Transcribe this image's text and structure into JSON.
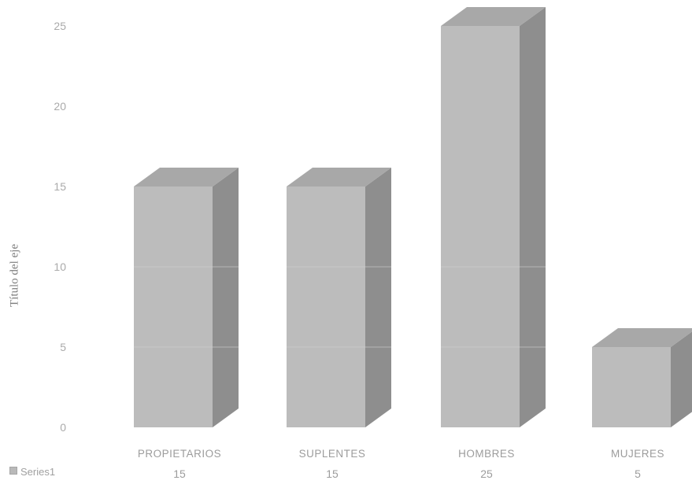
{
  "chart_data": {
    "type": "bar",
    "title": "",
    "xlabel": "",
    "ylabel": "Título del eje",
    "categories": [
      "PROPIETARIOS",
      "SUPLENTES",
      "HOMBRES",
      "MUJERES"
    ],
    "series": [
      {
        "name": "Series1",
        "values": [
          15,
          15,
          25,
          5
        ]
      }
    ],
    "ylim": [
      0,
      25
    ],
    "yticks": [
      "0",
      "5",
      "10",
      "15",
      "20",
      "25"
    ],
    "style": "3d-column",
    "grid": false,
    "legend": "bottom-left table",
    "colors": {
      "front": "#bcbcbc",
      "side": "#8e8e8e",
      "top": "#a8a8a8",
      "text": "#9c9c9c"
    }
  }
}
